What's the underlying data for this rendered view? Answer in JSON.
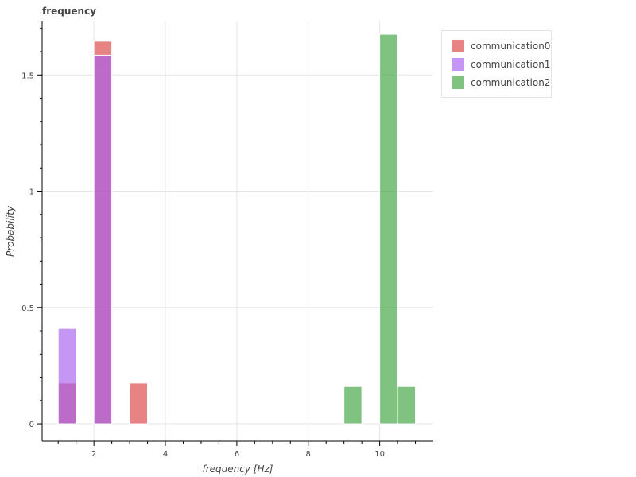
{
  "chart_data": {
    "type": "bar",
    "title": "frequency",
    "xlabel": "frequency [Hz]",
    "ylabel": "Probability",
    "xlim": [
      0.55,
      11.5
    ],
    "ylim": [
      -0.075,
      1.73
    ],
    "x_ticks": [
      2,
      4,
      6,
      8,
      10
    ],
    "y_ticks": [
      0,
      0.5,
      1,
      1.5
    ],
    "y_tick_labels": [
      "0",
      "0.5",
      "1",
      "1.5"
    ],
    "grid": true,
    "legend_position": "top-right, outside plot",
    "series": [
      {
        "name": "communication0",
        "color": "#e05a5a",
        "bins": [
          {
            "x0": 1.0,
            "x1": 1.5,
            "value": 0.175
          },
          {
            "x0": 2.0,
            "x1": 2.5,
            "value": 1.645
          },
          {
            "x0": 3.0,
            "x1": 3.5,
            "value": 0.175
          }
        ]
      },
      {
        "name": "communication1",
        "color": "#a65eec",
        "bins": [
          {
            "x0": 1.0,
            "x1": 1.5,
            "value": 0.41
          },
          {
            "x0": 2.0,
            "x1": 2.5,
            "value": 1.585
          }
        ]
      },
      {
        "name": "communication2",
        "color": "#4aa84a",
        "bins": [
          {
            "x0": 9.0,
            "x1": 9.5,
            "value": 0.16
          },
          {
            "x0": 10.0,
            "x1": 10.5,
            "value": 1.675
          },
          {
            "x0": 10.5,
            "x1": 11.0,
            "value": 0.16
          }
        ]
      }
    ]
  }
}
